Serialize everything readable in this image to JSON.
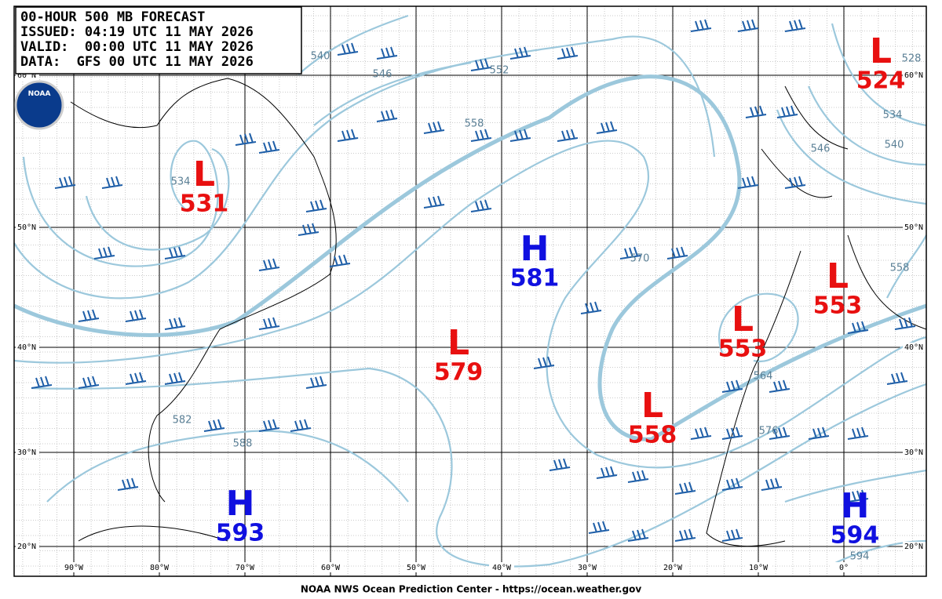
{
  "header": {
    "lines": [
      "00-HOUR 500 MB FORECAST",
      "ISSUED: 04:19 UTC 11 MAY 2026",
      "VALID:  00:00 UTC 11 MAY 2026",
      "DATA:  GFS 00 UTC 11 MAY 2026"
    ]
  },
  "logo": "NOAA",
  "centers": [
    {
      "symbol": "L",
      "value": 531
    },
    {
      "symbol": "H",
      "value": 581
    },
    {
      "symbol": "L",
      "value": 579
    },
    {
      "symbol": "L",
      "value": 558
    },
    {
      "symbol": "L",
      "value": 553
    },
    {
      "symbol": "L",
      "value": 553
    },
    {
      "symbol": "L",
      "value": 524
    },
    {
      "symbol": "H",
      "value": 593
    },
    {
      "symbol": "H",
      "value": 594
    }
  ],
  "contour_labels": [
    540,
    546,
    552,
    558,
    534,
    570,
    582,
    588,
    564,
    576,
    594,
    528,
    534,
    540,
    546,
    558
  ],
  "lat_labels": [
    "60°N",
    "50°N",
    "40°N",
    "30°N",
    "20°N"
  ],
  "lon_labels": [
    "90°W",
    "80°W",
    "70°W",
    "60°W",
    "50°W",
    "40°W",
    "30°W",
    "20°W",
    "10°W",
    "0°"
  ],
  "footer": "NOAA NWS Ocean Prediction Center - https://ocean.weather.gov"
}
